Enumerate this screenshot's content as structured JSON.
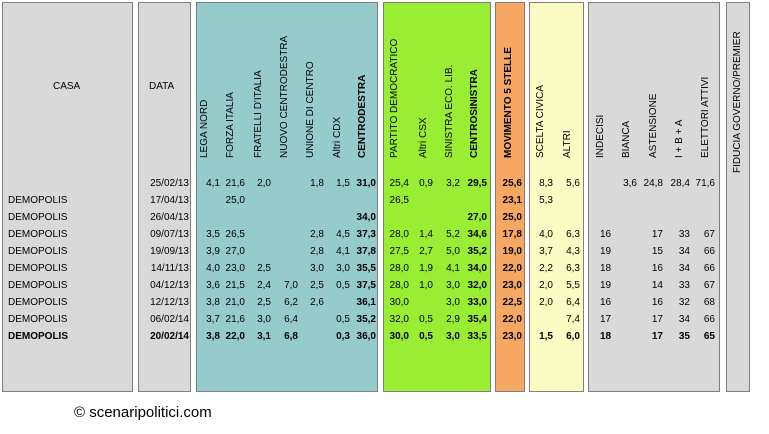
{
  "headers": {
    "casa": "CASA",
    "data": "DATA",
    "lega_nord": "LEGA NORD",
    "forza_italia": "FORZA ITALIA",
    "fratelli_italia": "FRATELLI D'ITALIA",
    "nuovo_centrodestra": "NUOVO CENTRODESTRA",
    "unione_centro": "UNIONE DI CENTRO",
    "altri_cdx": "Altri CDX",
    "centrodestra": "CENTRODESTRA",
    "pd": "PARTITO DEMOCRATICO",
    "altri_csx": "Altri CSX",
    "sel": "SINISTRA ECO. LIB.",
    "centrosinistra": "CENTROSINISTRA",
    "m5s": "MOVIMENTO 5 STELLE",
    "scelta_civica": "SCELTA CIVICA",
    "altri": "ALTRI",
    "indecisi": "INDECISI",
    "bianca": "BIANCA",
    "astensione": "ASTENSIONE",
    "ibA": "I + B + A",
    "elettori_attivi": "ELETTORI ATTIVI",
    "fiducia": "FIDUCIA GOVERNO/PREMIER"
  },
  "colors": {
    "teal": "#96cbcc",
    "green": "#99ee33",
    "orange": "#f6a863",
    "yellow": "#fbfbc4",
    "gray": "#d9d9d9"
  },
  "rows": [
    {
      "casa": "",
      "data": "25/02/13",
      "ln": "4,1",
      "fi": "21,6",
      "fdi": "2,0",
      "ncd": "",
      "udc": "1,8",
      "acdx": "1,5",
      "cdx": "31,0",
      "pd": "25,4",
      "acsx": "0,9",
      "sel": "3,2",
      "csx": "29,5",
      "m5s": "25,6",
      "sc": "8,3",
      "alt": "5,6",
      "ind": "",
      "bia": "3,6",
      "ast": "24,8",
      "iba": "28,4",
      "ea": "71,6",
      "bold": false
    },
    {
      "casa": "DEMOPOLIS",
      "data": "17/04/13",
      "ln": "",
      "fi": "25,0",
      "fdi": "",
      "ncd": "",
      "udc": "",
      "acdx": "",
      "cdx": "",
      "pd": "26,5",
      "acsx": "",
      "sel": "",
      "csx": "",
      "m5s": "23,1",
      "sc": "5,3",
      "alt": "",
      "ind": "",
      "bia": "",
      "ast": "",
      "iba": "",
      "ea": "",
      "bold": false
    },
    {
      "casa": "DEMOPOLIS",
      "data": "26/04/13",
      "ln": "",
      "fi": "",
      "fdi": "",
      "ncd": "",
      "udc": "",
      "acdx": "",
      "cdx": "34,0",
      "pd": "",
      "acsx": "",
      "sel": "",
      "csx": "27,0",
      "m5s": "25,0",
      "sc": "",
      "alt": "",
      "ind": "",
      "bia": "",
      "ast": "",
      "iba": "",
      "ea": "",
      "bold": false
    },
    {
      "casa": "DEMOPOLIS",
      "data": "09/07/13",
      "ln": "3,5",
      "fi": "26,5",
      "fdi": "",
      "ncd": "",
      "udc": "2,8",
      "acdx": "4,5",
      "cdx": "37,3",
      "pd": "28,0",
      "acsx": "1,4",
      "sel": "5,2",
      "csx": "34,6",
      "m5s": "17,8",
      "sc": "4,0",
      "alt": "6,3",
      "ind": "16",
      "bia": "",
      "ast": "17",
      "iba": "33",
      "ea": "67",
      "bold": false
    },
    {
      "casa": "DEMOPOLIS",
      "data": "19/09/13",
      "ln": "3,9",
      "fi": "27,0",
      "fdi": "",
      "ncd": "",
      "udc": "2,8",
      "acdx": "4,1",
      "cdx": "37,8",
      "pd": "27,5",
      "acsx": "2,7",
      "sel": "5,0",
      "csx": "35,2",
      "m5s": "19,0",
      "sc": "3,7",
      "alt": "4,3",
      "ind": "19",
      "bia": "",
      "ast": "15",
      "iba": "34",
      "ea": "66",
      "bold": false
    },
    {
      "casa": "DEMOPOLIS",
      "data": "14/11/13",
      "ln": "4,0",
      "fi": "23,0",
      "fdi": "2,5",
      "ncd": "",
      "udc": "3,0",
      "acdx": "3,0",
      "cdx": "35,5",
      "pd": "28,0",
      "acsx": "1,9",
      "sel": "4,1",
      "csx": "34,0",
      "m5s": "22,0",
      "sc": "2,2",
      "alt": "6,3",
      "ind": "18",
      "bia": "",
      "ast": "16",
      "iba": "34",
      "ea": "66",
      "bold": false
    },
    {
      "casa": "DEMOPOLIS",
      "data": "04/12/13",
      "ln": "3,6",
      "fi": "21,5",
      "fdi": "2,4",
      "ncd": "7,0",
      "udc": "2,5",
      "acdx": "0,5",
      "cdx": "37,5",
      "pd": "28,0",
      "acsx": "1,0",
      "sel": "3,0",
      "csx": "32,0",
      "m5s": "23,0",
      "sc": "2,0",
      "alt": "5,5",
      "ind": "19",
      "bia": "",
      "ast": "14",
      "iba": "33",
      "ea": "67",
      "bold": false
    },
    {
      "casa": "DEMOPOLIS",
      "data": "12/12/13",
      "ln": "3,8",
      "fi": "21,0",
      "fdi": "2,5",
      "ncd": "6,2",
      "udc": "2,6",
      "acdx": "",
      "cdx": "36,1",
      "pd": "30,0",
      "acsx": "",
      "sel": "3,0",
      "csx": "33,0",
      "m5s": "22,5",
      "sc": "2,0",
      "alt": "6,4",
      "ind": "16",
      "bia": "",
      "ast": "16",
      "iba": "32",
      "ea": "68",
      "bold": false
    },
    {
      "casa": "DEMOPOLIS",
      "data": "06/02/14",
      "ln": "3,7",
      "fi": "21,6",
      "fdi": "3,0",
      "ncd": "6,4",
      "udc": "",
      "acdx": "0,5",
      "cdx": "35,2",
      "pd": "32,0",
      "acsx": "0,5",
      "sel": "2,9",
      "csx": "35,4",
      "m5s": "22,0",
      "sc": "",
      "alt": "7,4",
      "ind": "17",
      "bia": "",
      "ast": "17",
      "iba": "34",
      "ea": "66",
      "bold": false
    },
    {
      "casa": "DEMOPOLIS",
      "data": "20/02/14",
      "ln": "3,8",
      "fi": "22,0",
      "fdi": "3,1",
      "ncd": "6,8",
      "udc": "",
      "acdx": "0,3",
      "cdx": "36,0",
      "pd": "30,0",
      "acsx": "0,5",
      "sel": "3,0",
      "csx": "33,5",
      "m5s": "23,0",
      "sc": "1,5",
      "alt": "6,0",
      "ind": "18",
      "bia": "",
      "ast": "17",
      "iba": "35",
      "ea": "65",
      "bold": true
    }
  ],
  "footer": "© scenaripolitici.com"
}
